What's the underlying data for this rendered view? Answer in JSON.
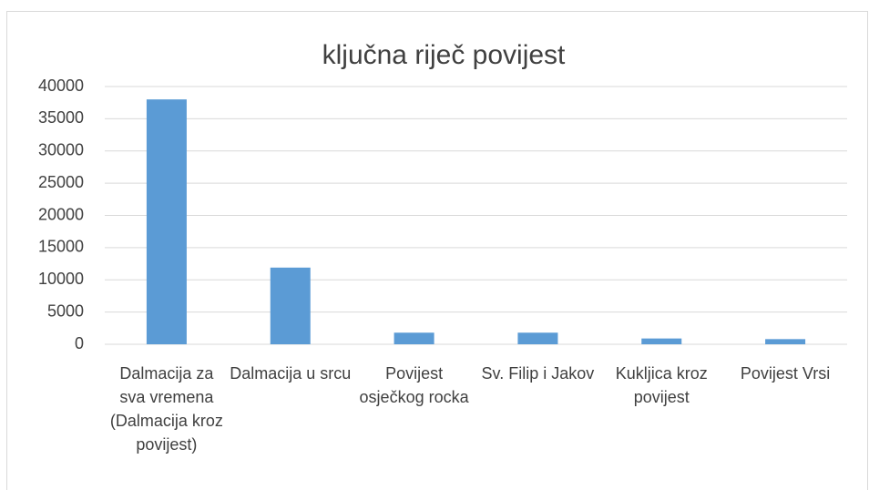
{
  "chart_data": {
    "type": "bar",
    "title": "ključna riječ povijest",
    "categories": [
      "Dalmacija za sva vremena (Dalmacija kroz povijest)",
      "Dalmacija u srcu",
      "Povijest osječkog rocka",
      "Sv. Filip i Jakov",
      "Kukljica kroz povijest",
      "Povijest Vrsi"
    ],
    "values": [
      38000,
      11900,
      1800,
      1800,
      900,
      800
    ],
    "color": "#5b9bd5",
    "ylim": [
      0,
      40000
    ],
    "yticks": [
      0,
      5000,
      10000,
      15000,
      20000,
      25000,
      30000,
      35000,
      40000
    ],
    "grid": true
  }
}
